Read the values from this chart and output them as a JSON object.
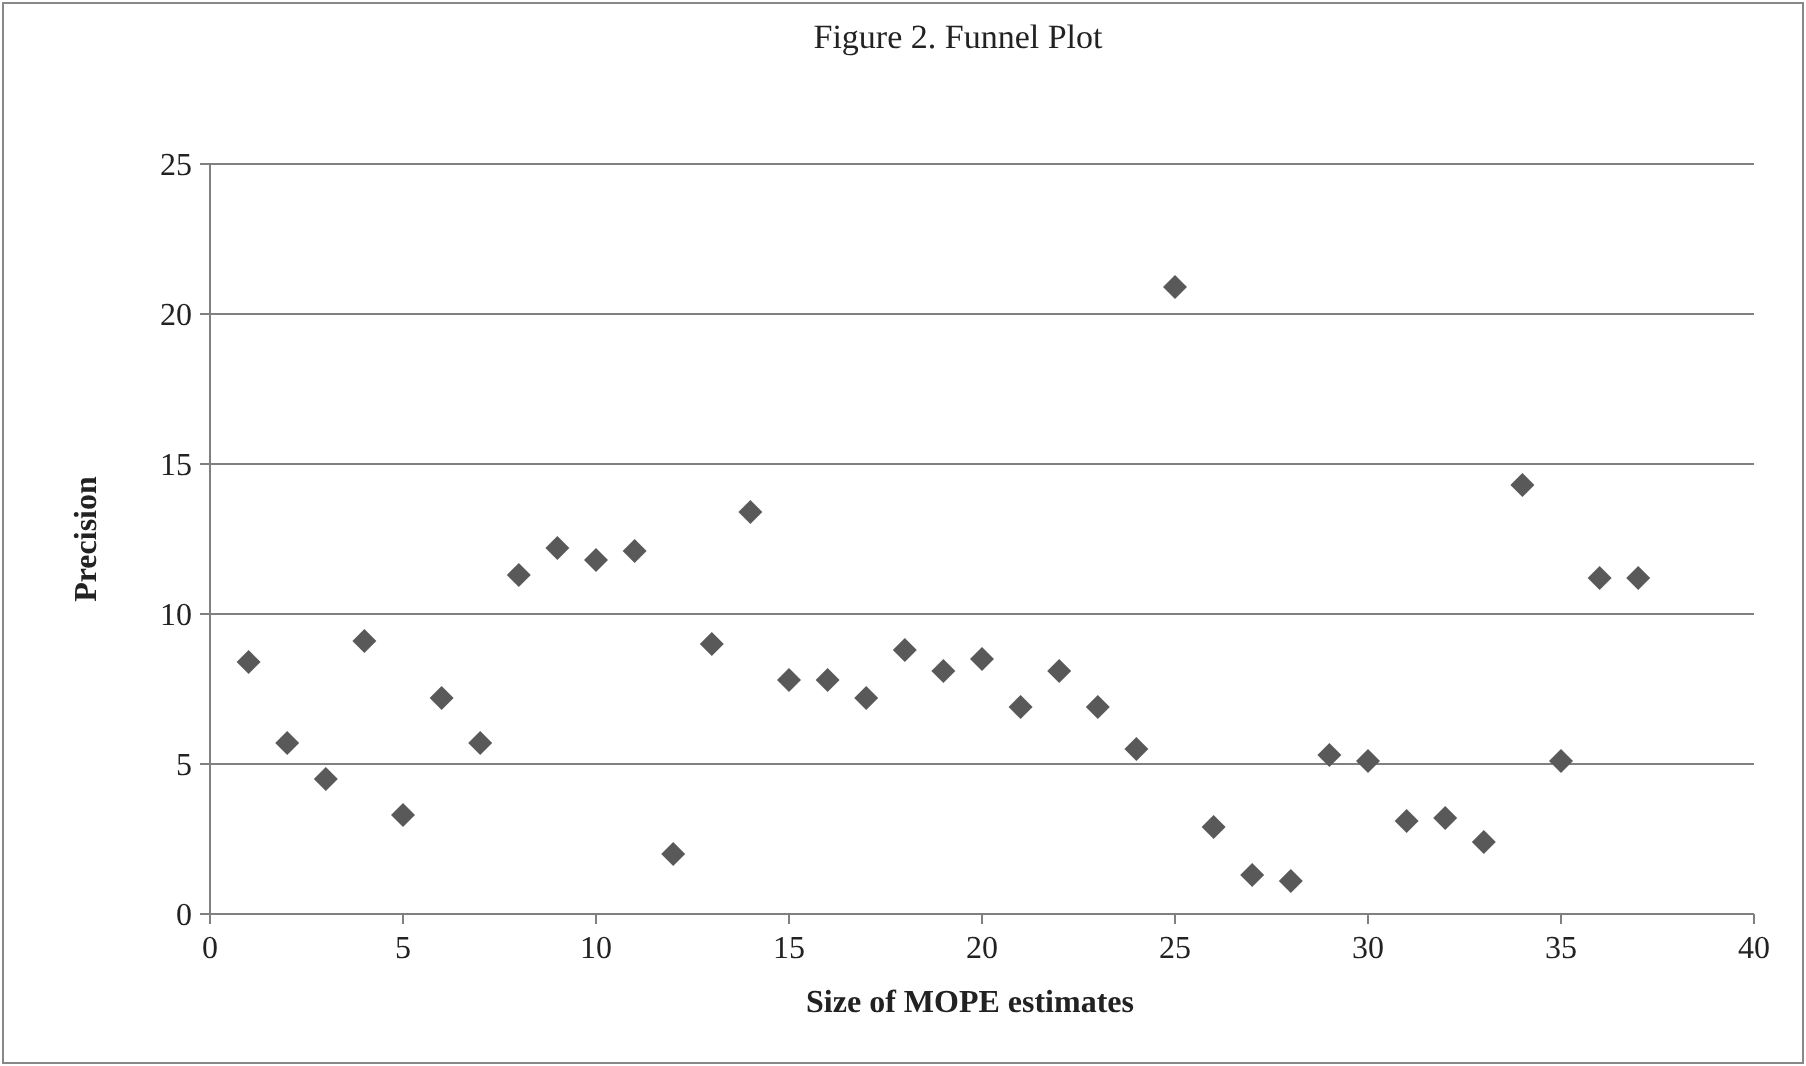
{
  "chart_data": {
    "type": "scatter",
    "title": "Figure 2. Funnel Plot",
    "xlabel": "Size of MOPE estimates",
    "ylabel": "Precision",
    "x": [
      1,
      2,
      3,
      4,
      5,
      6,
      7,
      8,
      9,
      10,
      11,
      12,
      13,
      14,
      15,
      16,
      17,
      18,
      19,
      20,
      21,
      22,
      23,
      24,
      25,
      26,
      27,
      28,
      29,
      30,
      31,
      32,
      33,
      34,
      35,
      36,
      37
    ],
    "series": [
      {
        "color": "#595959",
        "values": [
          8.4,
          5.7,
          4.5,
          9.1,
          3.3,
          7.2,
          5.7,
          11.3,
          12.2,
          11.8,
          12.1,
          2.0,
          9.0,
          13.4,
          7.8,
          7.8,
          7.2,
          8.8,
          8.1,
          8.5,
          6.9,
          8.1,
          6.9,
          5.5,
          20.9,
          2.9,
          1.3,
          1.1,
          5.3,
          5.1,
          3.1,
          3.2,
          2.4,
          14.3,
          5.1,
          11.2,
          11.2
        ]
      }
    ],
    "xlim": [
      0,
      40
    ],
    "xticks": [
      0,
      5,
      10,
      15,
      20,
      25,
      30,
      35,
      40
    ],
    "ylim": [
      0,
      25
    ],
    "yticks": [
      0,
      5,
      10,
      15,
      20,
      25
    ],
    "grid": "y",
    "marker": "diamond"
  }
}
